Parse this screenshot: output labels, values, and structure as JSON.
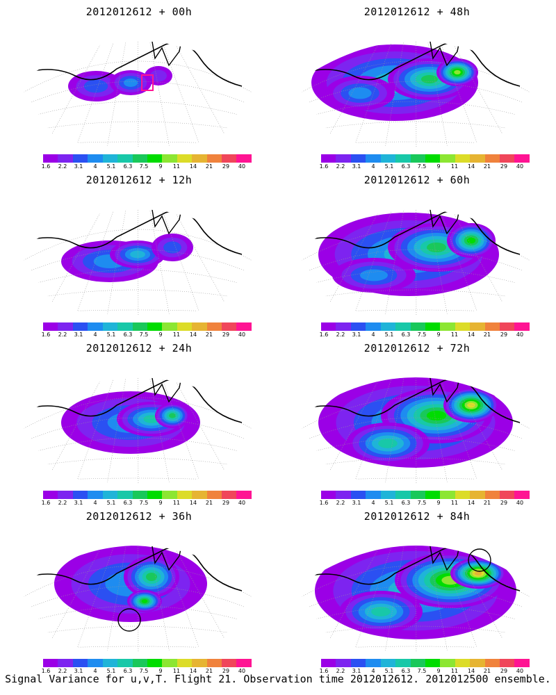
{
  "caption": "Signal Variance for u,v,T. Flight 21. Observation time 2012012612. 2012012500 ensemble.",
  "panels": [
    {
      "title": "2012012612 + 00h",
      "marker": "square"
    },
    {
      "title": "2012012612 + 48h"
    },
    {
      "title": "2012012612 + 12h"
    },
    {
      "title": "2012012612 + 60h"
    },
    {
      "title": "2012012612 + 24h"
    },
    {
      "title": "2012012612 + 72h"
    },
    {
      "title": "2012012612 + 36h",
      "marker": "circle"
    },
    {
      "title": "2012012612 + 84h",
      "marker": "circle"
    }
  ],
  "colorbar": {
    "levels": [
      "1.6",
      "2.2",
      "3.1",
      "4",
      "5.1",
      "6.3",
      "7.5",
      "9",
      "11",
      "14",
      "21",
      "29",
      "40"
    ],
    "colors": [
      "#9b00e6",
      "#7d24f0",
      "#2b50f2",
      "#1e8cf0",
      "#1fb4d8",
      "#18c8a8",
      "#19c85a",
      "#00dc00",
      "#8ce632",
      "#dcdc28",
      "#e6b432",
      "#f0823c",
      "#f0465a",
      "#ff1493"
    ]
  }
}
